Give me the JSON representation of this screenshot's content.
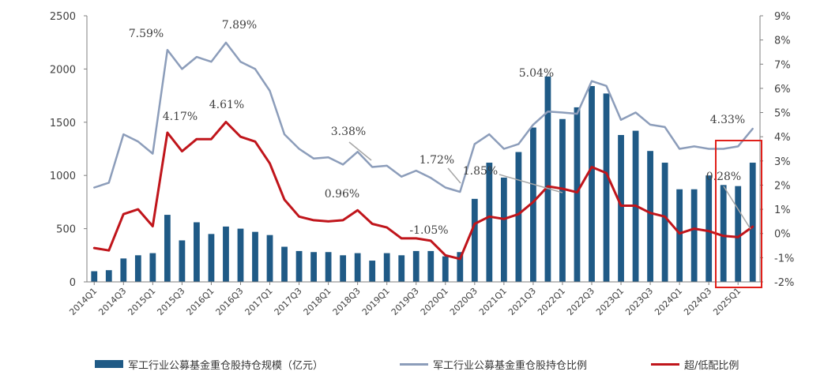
{
  "chart_data": {
    "type": "bar+line",
    "categories": [
      "2014Q1",
      "2014Q2",
      "2014Q3",
      "2014Q4",
      "2015Q1",
      "2015Q2",
      "2015Q3",
      "2015Q4",
      "2016Q1",
      "2016Q2",
      "2016Q3",
      "2016Q4",
      "2017Q1",
      "2017Q2",
      "2017Q3",
      "2017Q4",
      "2018Q1",
      "2018Q2",
      "2018Q3",
      "2018Q4",
      "2019Q1",
      "2019Q2",
      "2019Q3",
      "2019Q4",
      "2020Q1",
      "2020Q2",
      "2020Q3",
      "2020Q4",
      "2021Q1",
      "2021Q2",
      "2021Q3",
      "2021Q4",
      "2022Q1",
      "2022Q2",
      "2022Q3",
      "2022Q4",
      "2023Q1",
      "2023Q2",
      "2023Q3",
      "2023Q4",
      "2024Q1",
      "2024Q2",
      "2024Q3",
      "2024Q4",
      "2025Q1",
      "2025Q2"
    ],
    "x_tick_labels": [
      "2014Q1",
      "2014Q3",
      "2015Q1",
      "2015Q3",
      "2016Q1",
      "2016Q3",
      "2017Q1",
      "2017Q3",
      "2018Q1",
      "2018Q3",
      "2019Q1",
      "2019Q3",
      "2020Q1",
      "2020Q3",
      "2021Q1",
      "2021Q3",
      "2022Q1",
      "2022Q3",
      "2023Q1",
      "2023Q3",
      "2024Q1",
      "2024Q3",
      "2025Q1"
    ],
    "y_left": {
      "ticks": [
        "0",
        "500",
        "1000",
        "1500",
        "2000",
        "2500"
      ],
      "range": [
        0,
        2500
      ]
    },
    "y_right": {
      "ticks": [
        "-2%",
        "-1%",
        "0%",
        "1%",
        "2%",
        "3%",
        "4%",
        "5%",
        "6%",
        "7%",
        "8%",
        "9%"
      ],
      "range": [
        -2,
        9
      ]
    },
    "series": [
      {
        "name": "军工行业公募基金重仓股持仓规模（亿元）",
        "type": "bar",
        "axis": "left",
        "color": "#1f5a86",
        "values": [
          100,
          110,
          220,
          250,
          270,
          630,
          390,
          560,
          450,
          520,
          500,
          470,
          440,
          330,
          290,
          280,
          280,
          250,
          270,
          200,
          270,
          250,
          290,
          290,
          240,
          280,
          780,
          1120,
          980,
          1220,
          1450,
          1930,
          1530,
          1640,
          1840,
          1770,
          1380,
          1420,
          1230,
          1120,
          870,
          870,
          1000,
          910,
          900,
          1120
        ]
      },
      {
        "name": "军工行业公募基金重仓股持仓比例",
        "type": "line",
        "axis": "right",
        "color": "#8c9dba",
        "values": [
          1.9,
          2.1,
          4.1,
          3.8,
          3.3,
          7.59,
          6.8,
          7.3,
          7.1,
          7.89,
          7.1,
          6.8,
          5.9,
          4.1,
          3.5,
          3.1,
          3.15,
          2.85,
          3.38,
          2.75,
          2.8,
          2.35,
          2.6,
          2.3,
          1.9,
          1.72,
          3.7,
          4.1,
          3.5,
          3.7,
          4.5,
          5.04,
          5.0,
          4.95,
          6.3,
          6.1,
          4.7,
          5.0,
          4.5,
          4.4,
          3.5,
          3.6,
          3.5,
          3.5,
          3.6,
          4.33
        ]
      },
      {
        "name": "超/低配比例",
        "type": "line",
        "axis": "right",
        "color": "#c0151b",
        "values": [
          -0.6,
          -0.7,
          0.8,
          1.0,
          0.3,
          4.17,
          3.4,
          3.9,
          3.9,
          4.61,
          4.0,
          3.8,
          2.9,
          1.4,
          0.7,
          0.55,
          0.5,
          0.55,
          0.96,
          0.4,
          0.25,
          -0.2,
          -0.2,
          -0.3,
          -0.9,
          -1.05,
          0.4,
          0.7,
          0.6,
          0.8,
          1.3,
          1.95,
          1.85,
          1.7,
          2.75,
          2.5,
          1.15,
          1.15,
          0.85,
          0.7,
          0.0,
          0.2,
          0.1,
          -0.1,
          -0.15,
          0.28
        ]
      }
    ],
    "annotations": [
      {
        "text": "7.59%",
        "color": "#404040"
      },
      {
        "text": "7.89%",
        "color": "#404040"
      },
      {
        "text": "4.17%",
        "color": "#404040"
      },
      {
        "text": "4.61%",
        "color": "#404040"
      },
      {
        "text": "3.38%",
        "color": "#404040"
      },
      {
        "text": "0.96%",
        "color": "#404040"
      },
      {
        "text": "1.72%",
        "color": "#404040"
      },
      {
        "text": "-1.05%",
        "color": "#404040"
      },
      {
        "text": "1.85%",
        "color": "#404040"
      },
      {
        "text": "5.04%",
        "color": "#404040"
      },
      {
        "text": "4.33%",
        "color": "#c0151b"
      },
      {
        "text": "0.28%",
        "color": "#c0151b"
      }
    ],
    "highlight_box_color": "#e0201a",
    "legend_position": "bottom",
    "grid": false
  },
  "legend": {
    "bar_label": "军工行业公募基金重仓股持仓规模（亿元）",
    "line1_label": "军工行业公募基金重仓股持仓比例",
    "line2_label": "超/低配比例"
  }
}
